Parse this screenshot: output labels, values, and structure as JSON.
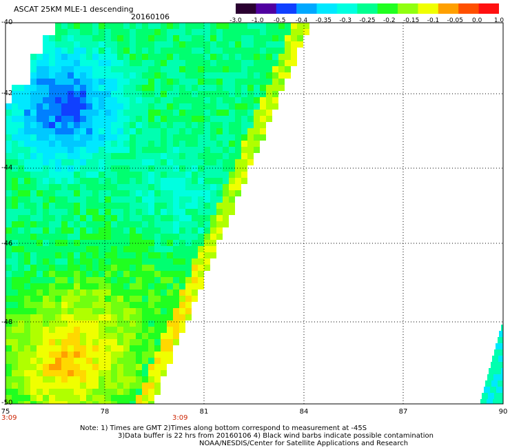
{
  "header": {
    "title": "ASCAT 25KM MLE-1 descending",
    "date": "20160106"
  },
  "colorbar": {
    "labels": [
      "-3.0",
      "-1.0",
      "-0.5",
      "-0.4",
      "-0.35",
      "-0.3",
      "-0.25",
      "-0.2",
      "-0.15",
      "-0.1",
      "-0.05",
      "0.0",
      "1.0"
    ],
    "colors": [
      "#2a0030",
      "#5000a0",
      "#1040ff",
      "#00a8ff",
      "#00e8ff",
      "#00ffe0",
      "#00ff90",
      "#20ff20",
      "#90ff10",
      "#f0ff00",
      "#ffa000",
      "#ff5000",
      "#ff1010"
    ]
  },
  "axes": {
    "lat_ticks": [
      "-40",
      "-42",
      "-44",
      "-46",
      "-48",
      "-50"
    ],
    "lon_ticks": [
      "75",
      "78",
      "81",
      "84",
      "87",
      "90"
    ],
    "times": [
      "3:09",
      "3:09"
    ]
  },
  "notes": {
    "line1": "Note: 1) Times are GMT 2)Times along bottom correspond to measurement at -45S",
    "line2": "3)Data buffer is 22 hrs from 20160106 4) Black wind barbs indicate possible contamination",
    "line3": "NOAA/NESDIS/Center for Satellite Applications and Research"
  },
  "map_style": {
    "grid": "dotted",
    "background": "#ffffff"
  }
}
